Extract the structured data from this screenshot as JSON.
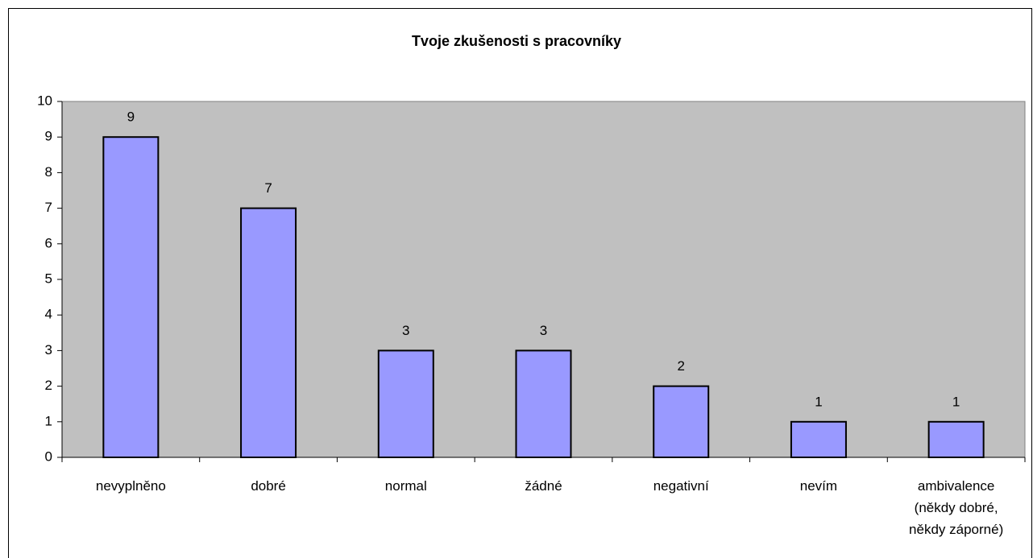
{
  "chart_data": {
    "type": "bar",
    "title": "Tvoje zkušenosti s pracovníky",
    "categories": [
      "nevyplněno",
      "dobré",
      "normal",
      "žádné",
      "negativní",
      "nevím",
      "ambivalence (někdy dobré, někdy záporné)"
    ],
    "values": [
      9,
      7,
      3,
      3,
      2,
      1,
      1
    ],
    "color": "#9999ff",
    "plot_background": "#c0c0c0",
    "ylim": [
      0,
      10
    ],
    "yticks": [
      0,
      1,
      2,
      3,
      4,
      5,
      6,
      7,
      8,
      9,
      10
    ],
    "grid": false
  }
}
